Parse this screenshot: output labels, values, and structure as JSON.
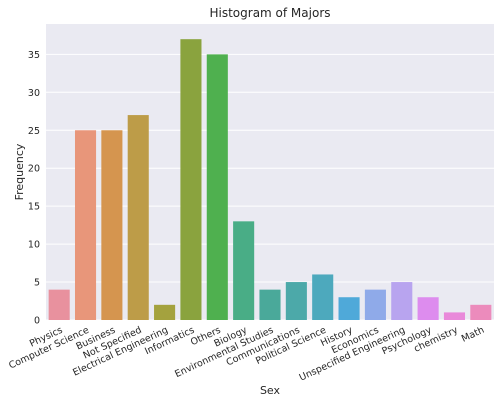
{
  "chart_data": {
    "type": "bar",
    "title": "Histogram of Majors",
    "xlabel": "Sex",
    "ylabel": "Frequency",
    "ylim": [
      0,
      39
    ],
    "yticks": [
      0,
      5,
      10,
      15,
      20,
      25,
      30,
      35
    ],
    "grid": true,
    "categories": [
      "Physics",
      "Computer Science",
      "Business",
      "Not Specified",
      "Electrical Engineering",
      "Informatics",
      "Others",
      "Biology",
      "Environmental Studies",
      "Communications",
      "Political Science",
      "History",
      "Economics",
      "Unspecified Engineering",
      "Psychology",
      "chemistry",
      "Math"
    ],
    "values": [
      4,
      25,
      25,
      27,
      2,
      37,
      35,
      13,
      4,
      5,
      6,
      3,
      4,
      5,
      3,
      1,
      2
    ],
    "colors": [
      "#e8919e",
      "#e8967a",
      "#d5954f",
      "#bd9c48",
      "#a4a23e",
      "#8aa33e",
      "#4fb04f",
      "#49ad86",
      "#4aa99a",
      "#4ca9a9",
      "#4da9bd",
      "#4fa9d9",
      "#8faae9",
      "#b8a4ef",
      "#dd8cee",
      "#e989da",
      "#ec8bbc"
    ]
  }
}
